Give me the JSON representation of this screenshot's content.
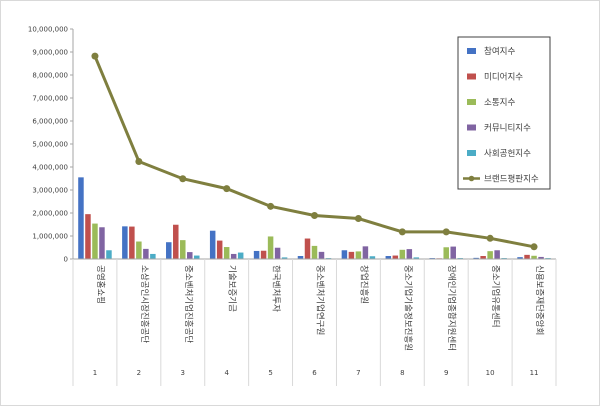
{
  "chart_data": {
    "type": "bar",
    "title": "",
    "xlabel": "",
    "ylabel": "",
    "ylim": [
      0,
      10000000
    ],
    "yticks": [
      "0",
      "1,000,000",
      "2,000,000",
      "3,000,000",
      "4,000,000",
      "5,000,000",
      "6,000,000",
      "7,000,000",
      "8,000,000",
      "9,000,000",
      "10,000,000"
    ],
    "grid": false,
    "legend_position": "top-right",
    "categories": [
      "1",
      "2",
      "3",
      "4",
      "5",
      "6",
      "7",
      "8",
      "9",
      "10",
      "11"
    ],
    "category_names": [
      "공영홈쇼핑",
      "소상공인시장진흥공단",
      "중소벤처기업진흥공단",
      "기술보증기금",
      "한국벤처투자",
      "중소벤처기업연구원",
      "창업진흥원",
      "중소기업기술정보진흥원",
      "장애인기업종합지원센터",
      "중소기업유통센터",
      "신용보증재단중앙회"
    ],
    "series": [
      {
        "name": "참여지수",
        "type": "bar",
        "color": "#4472c4",
        "values": [
          3550000,
          1420000,
          730000,
          1230000,
          350000,
          130000,
          380000,
          130000,
          40000,
          50000,
          80000
        ]
      },
      {
        "name": "미디어지수",
        "type": "bar",
        "color": "#c0504d",
        "values": [
          1950000,
          1410000,
          1490000,
          800000,
          360000,
          890000,
          310000,
          150000,
          30000,
          130000,
          180000
        ]
      },
      {
        "name": "소통지수",
        "type": "bar",
        "color": "#9bbb59",
        "values": [
          1540000,
          760000,
          820000,
          520000,
          980000,
          570000,
          330000,
          400000,
          510000,
          340000,
          140000
        ]
      },
      {
        "name": "커뮤니티지수",
        "type": "bar",
        "color": "#8064a2",
        "values": [
          1380000,
          440000,
          300000,
          220000,
          490000,
          310000,
          550000,
          430000,
          540000,
          380000,
          90000
        ]
      },
      {
        "name": "사회공헌지수",
        "type": "bar",
        "color": "#4bacc6",
        "values": [
          380000,
          220000,
          150000,
          280000,
          70000,
          40000,
          120000,
          70000,
          40000,
          40000,
          40000
        ]
      },
      {
        "name": "브랜드평판지수",
        "type": "line",
        "color": "#7f7f3f",
        "values": [
          8820000,
          4240000,
          3490000,
          3060000,
          2290000,
          1890000,
          1760000,
          1180000,
          1180000,
          900000,
          530000
        ]
      }
    ]
  }
}
